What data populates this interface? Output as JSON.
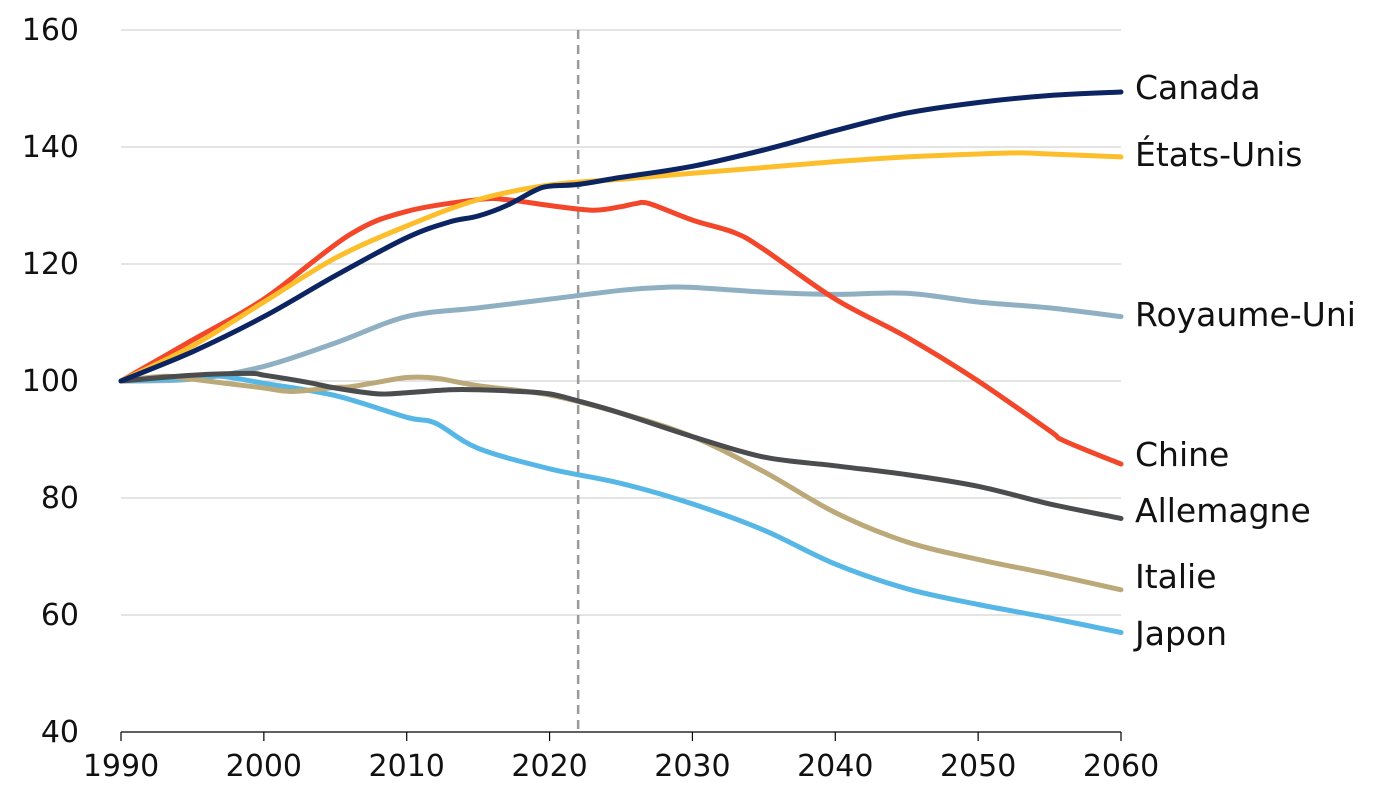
{
  "chart_data": {
    "type": "line",
    "title": "",
    "xlabel": "",
    "ylabel": "",
    "xlim": [
      1990,
      2060
    ],
    "ylim": [
      40,
      160
    ],
    "x_ticks": [
      "1990",
      "2000",
      "2010",
      "2020",
      "2030",
      "2040",
      "2050",
      "2060"
    ],
    "y_ticks": [
      "160",
      "140",
      "120",
      "100",
      "80",
      "60",
      "40"
    ],
    "grid": "horizontal",
    "legend": "direct labels at right end of each line",
    "reference_line": {
      "x": 2022,
      "style": "dashed"
    },
    "series": [
      {
        "name": "Canada",
        "color": "#0c2461",
        "x": [
          1990,
          1995,
          2000,
          2005,
          2010,
          2013,
          2015,
          2017,
          2019,
          2020,
          2022,
          2025,
          2030,
          2035,
          2040,
          2045,
          2050,
          2055,
          2060
        ],
        "values": [
          100,
          105,
          111,
          118,
          124.5,
          127.2,
          128.2,
          130,
          132.6,
          133.3,
          133.6,
          134.8,
          136.7,
          139.5,
          142.8,
          145.8,
          147.6,
          148.8,
          149.4
        ]
      },
      {
        "name": "États-Unis",
        "color": "#fcbf2b",
        "x": [
          1990,
          1995,
          2000,
          2005,
          2010,
          2015,
          2020,
          2025,
          2030,
          2035,
          2040,
          2045,
          2050,
          2053,
          2055,
          2060
        ],
        "values": [
          100,
          106,
          113.5,
          121,
          126.5,
          131,
          133.5,
          134.5,
          135.5,
          136.5,
          137.5,
          138.3,
          138.8,
          139,
          138.8,
          138.3
        ]
      },
      {
        "name": "Royaume-Uni",
        "color": "#8fb0c2",
        "x": [
          1990,
          1995,
          2000,
          2005,
          2010,
          2015,
          2020,
          2025,
          2028,
          2030,
          2035,
          2040,
          2045,
          2050,
          2055,
          2060
        ],
        "values": [
          100,
          100.3,
          102.5,
          106.5,
          111,
          112.5,
          114,
          115.5,
          116,
          116,
          115.2,
          114.8,
          115,
          113.5,
          112.5,
          111
        ]
      },
      {
        "name": "Chine",
        "color": "#f2472a",
        "x": [
          1990,
          1995,
          2000,
          2006,
          2010,
          2015,
          2017,
          2020,
          2023,
          2025,
          2026,
          2027,
          2030,
          2033,
          2035,
          2040,
          2045,
          2050,
          2055,
          2056,
          2060
        ],
        "values": [
          100,
          107,
          114,
          125,
          129,
          131,
          131,
          130,
          129.2,
          129.8,
          130.3,
          130.3,
          127.5,
          125.3,
          122.5,
          114,
          107.5,
          100,
          91.5,
          89.8,
          85.8
        ]
      },
      {
        "name": "Allemagne",
        "color": "#4b4c4e",
        "x": [
          1990,
          1995,
          1999,
          2000,
          2003,
          2005,
          2008,
          2010,
          2013,
          2015,
          2018,
          2020,
          2022,
          2025,
          2030,
          2035,
          2040,
          2045,
          2050,
          2055,
          2060
        ],
        "values": [
          100,
          101,
          101.3,
          101,
          99.8,
          98.8,
          97.8,
          98,
          98.5,
          98.5,
          98.2,
          97.8,
          96.6,
          94.5,
          90.5,
          87,
          85.5,
          84,
          82,
          79,
          76.5
        ]
      },
      {
        "name": "Italie",
        "color": "#bba979",
        "x": [
          1990,
          1993,
          1995,
          2000,
          2002,
          2005,
          2006,
          2008,
          2010,
          2012,
          2015,
          2020,
          2025,
          2030,
          2035,
          2040,
          2045,
          2050,
          2055,
          2060
        ],
        "values": [
          100,
          100.8,
          100.3,
          98.8,
          98.2,
          98.9,
          99,
          99.8,
          100.6,
          100.5,
          99.2,
          97.6,
          94.5,
          90.5,
          84.5,
          77.5,
          72.5,
          69.5,
          67,
          64.3
        ]
      },
      {
        "name": "Japon",
        "color": "#56b7e6",
        "x": [
          1990,
          1995,
          1997,
          2000,
          2005,
          2010,
          2012,
          2015,
          2020,
          2025,
          2030,
          2035,
          2040,
          2045,
          2050,
          2055,
          2060
        ],
        "values": [
          100,
          100.5,
          100.8,
          99.6,
          97.5,
          93.8,
          92.8,
          88.5,
          85,
          82.5,
          79,
          74.5,
          68.7,
          64.5,
          61.8,
          59.5,
          57
        ]
      }
    ]
  }
}
